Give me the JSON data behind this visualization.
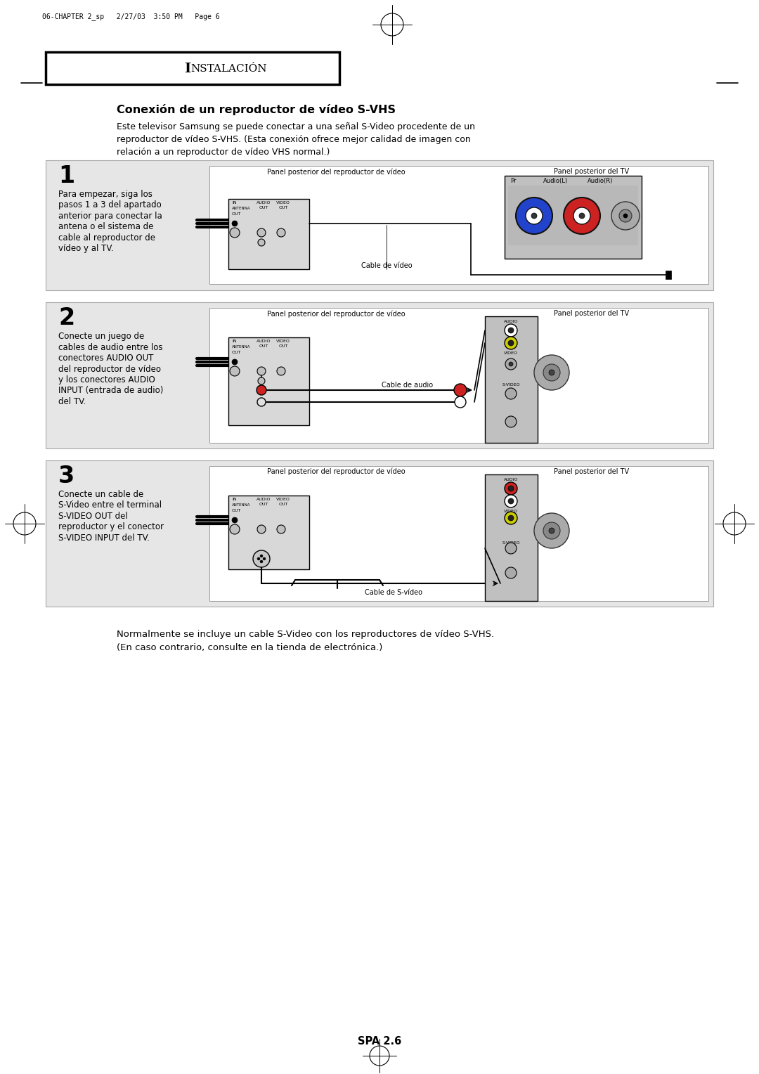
{
  "page_header": "06-CHAPTER 2_sp   2/27/03  3:50 PM   Page 6",
  "section_title_I": "I",
  "section_title_rest": "NSTALACIÓN",
  "connection_title": "Conexión de un reproductor de vídeo S-VHS",
  "intro_text": "Este televisor Samsung se puede conectar a una señal S-Video procedente de un\nreproductor de vídeo S-VHS. (Esta conexión ofrece mejor calidad de imagen con\nrelación a un reproductor de vídeo VHS normal.)",
  "step1_num": "1",
  "step1_text": "Para empezar, siga los\npasos 1 a 3 del apartado\nanterior para conectar la\nantena o el sistema de\ncable al reproductor de\nvídeo y al TV.",
  "step1_label_vcr": "Panel posterior del reproductor de vídeo",
  "step1_label_tv": "Panel posterior del TV",
  "step1_cable_label": "Cable de vídeo",
  "step2_num": "2",
  "step2_text": "Conecte un juego de\ncables de audio entre los\nconectores AUDIO OUT\ndel reproductor de vídeo\ny los conectores AUDIO\nINPUT (entrada de audio)\ndel TV.",
  "step2_label_vcr": "Panel posterior del reproductor de vídeo",
  "step2_label_tv": "Panel posterior del TV",
  "step2_cable_label": "Cable de audio",
  "step3_num": "3",
  "step3_text": "Conecte un cable de\nS-Video entre el terminal\nS-VIDEO OUT del\nreproductor y el conector\nS-VIDEO INPUT del TV.",
  "step3_label_vcr": "Panel posterior del reproductor de vídeo",
  "step3_label_tv": "Panel posterior del TV",
  "step3_cable_label": "Cable de S-vídeo",
  "footer_text": "Normalmente se incluye un cable S-Video con los reproductores de vídeo S-VHS.\n(En caso contrario, consulte en la tienda de electrónica.)",
  "page_num": "SPA 2.6",
  "bg_color": "#ffffff"
}
